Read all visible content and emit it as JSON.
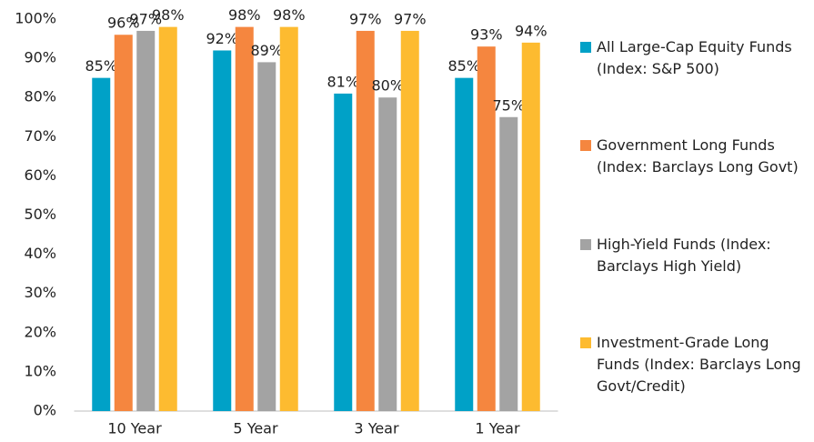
{
  "chart_data": {
    "type": "bar",
    "categories": [
      "10 Year",
      "5 Year",
      "3 Year",
      "1 Year"
    ],
    "series": [
      {
        "name": "All Large-Cap Equity Funds (Index: S&P 500)",
        "color": "#00a1c7",
        "values": [
          85,
          92,
          81,
          85
        ],
        "value_labels": [
          "85%",
          "92%",
          "81%",
          "85%"
        ]
      },
      {
        "name": "Government Long Funds (Index: Barclays Long Govt)",
        "color": "#f5863f",
        "values": [
          96,
          98,
          97,
          93
        ],
        "value_labels": [
          "96%",
          "98%",
          "97%",
          "93%"
        ]
      },
      {
        "name": "High-Yield Funds (Index: Barclays High Yield)",
        "color": "#a3a3a3",
        "values": [
          97,
          89,
          80,
          75
        ],
        "value_labels": [
          "97%",
          "89%",
          "80%",
          "75%"
        ]
      },
      {
        "name": "Investment-Grade Long Funds (Index: Barclays Long Govt/Credit)",
        "color": "#fdbb30",
        "values": [
          98,
          98,
          97,
          94
        ],
        "value_labels": [
          "98%",
          "98%",
          "97%",
          "94%"
        ]
      }
    ],
    "ylim": [
      0,
      100
    ],
    "yticks": [
      {
        "value": 0,
        "label": "0%"
      },
      {
        "value": 10,
        "label": "10%"
      },
      {
        "value": 20,
        "label": "20%"
      },
      {
        "value": 30,
        "label": "30%"
      },
      {
        "value": 40,
        "label": "40%"
      },
      {
        "value": 50,
        "label": "50%"
      },
      {
        "value": 60,
        "label": "60%"
      },
      {
        "value": 70,
        "label": "70%"
      },
      {
        "value": 80,
        "label": "80%"
      },
      {
        "value": 90,
        "label": "90%"
      },
      {
        "value": 100,
        "label": "100%"
      }
    ],
    "grid": false,
    "legend": "right"
  }
}
